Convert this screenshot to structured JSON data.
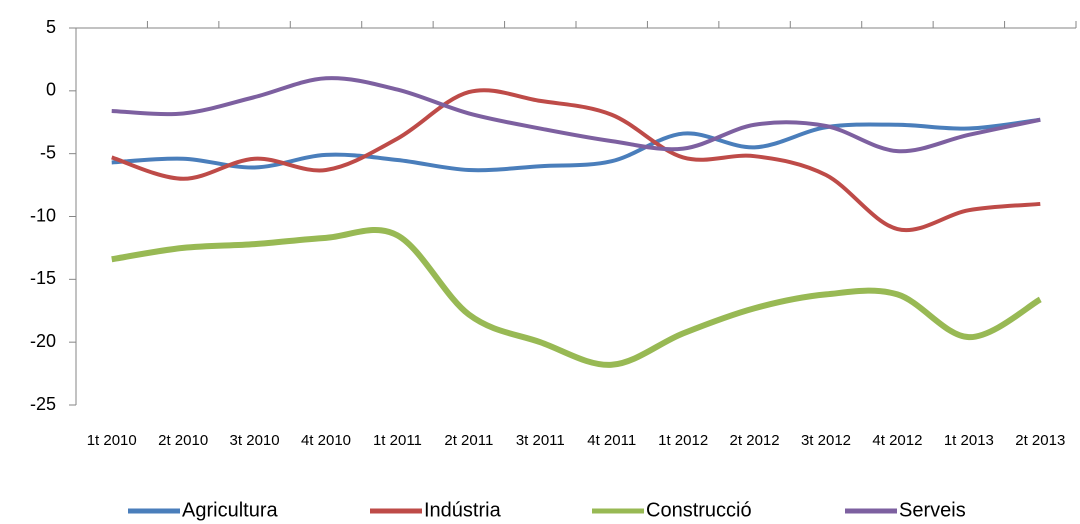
{
  "chart_data": {
    "type": "line",
    "categories": [
      "1t 2010",
      "2t 2010",
      "3t 2010",
      "4t 2010",
      "1t 2011",
      "2t 2011",
      "3t 2011",
      "4t 2011",
      "1t 2012",
      "2t 2012",
      "3t 2012",
      "4t 2012",
      "1t 2013",
      "2t 2013"
    ],
    "series": [
      {
        "name": "Agricultura",
        "color": "#4a7ebb",
        "values": [
          -5.7,
          -5.4,
          -6.1,
          -5.1,
          -5.5,
          -6.3,
          -6.0,
          -5.6,
          -3.4,
          -4.5,
          -2.9,
          -2.7,
          -3.0,
          -2.3
        ]
      },
      {
        "name": "Indústria",
        "color": "#be4b48",
        "values": [
          -5.3,
          -7.0,
          -5.4,
          -6.3,
          -3.8,
          -0.1,
          -0.8,
          -1.9,
          -5.3,
          -5.2,
          -6.7,
          -11.0,
          -9.5,
          -9.0
        ]
      },
      {
        "name": "Construcció",
        "color": "#98b954",
        "values": [
          -13.4,
          -12.5,
          -12.2,
          -11.7,
          -11.5,
          -17.8,
          -20.0,
          -21.8,
          -19.3,
          -17.3,
          -16.2,
          -16.2,
          -19.6,
          -16.6
        ]
      },
      {
        "name": "Serveis",
        "color": "#7d60a0",
        "values": [
          -1.6,
          -1.8,
          -0.5,
          1.0,
          0.1,
          -1.8,
          -3.0,
          -4.0,
          -4.6,
          -2.7,
          -2.8,
          -4.8,
          -3.5,
          -2.3
        ]
      }
    ],
    "ylim": [
      -25,
      5
    ],
    "yticks": [
      -25,
      -20,
      -15,
      -10,
      -5,
      0,
      5
    ],
    "smooth": true,
    "legend": "bottom"
  }
}
